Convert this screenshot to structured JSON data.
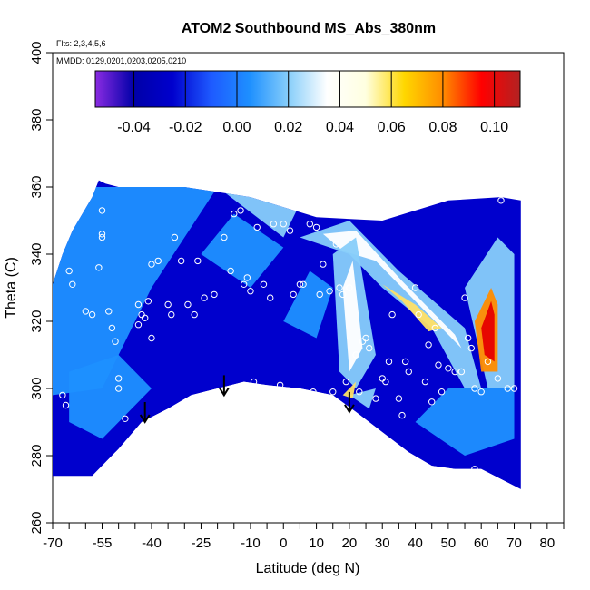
{
  "chart_data": {
    "type": "heatmap",
    "title": "ATOM2 Southbound MS_Abs_380nm",
    "subtitle_flights": "Flts: 2,3,4,5,6",
    "subtitle_dates": "MMDD: 0129,0201,0203,0205,0210",
    "xlabel": "Latitude (deg N)",
    "ylabel": "Theta (C)",
    "xlim": [
      -70,
      85
    ],
    "ylim": [
      260,
      400
    ],
    "x_ticks": [
      -70,
      -55,
      -40,
      -25,
      -10,
      0,
      10,
      20,
      30,
      40,
      50,
      60,
      70,
      80
    ],
    "x_minor_ticks": [
      -65,
      -60,
      -50,
      -45,
      -35,
      -30,
      -20,
      -15,
      -5,
      5,
      15,
      25,
      35,
      45,
      55,
      65,
      75,
      85
    ],
    "y_ticks": [
      260,
      280,
      300,
      320,
      340,
      360,
      380,
      400
    ],
    "colorbar": {
      "range": [
        -0.055,
        0.11
      ],
      "ticks": [
        -0.04,
        -0.02,
        0.0,
        0.02,
        0.04,
        0.06,
        0.08,
        0.1
      ],
      "tick_labels": [
        "-0.04",
        "-0.02",
        "0.00",
        "0.02",
        "0.04",
        "0.06",
        "0.08",
        "0.10"
      ],
      "colors": [
        "#8a2be2",
        "#0000a8",
        "#0000cd",
        "#1e5aff",
        "#1e90ff",
        "#87cefa",
        "#ffffff",
        "#ffffe0",
        "#ffd700",
        "#ff8c00",
        "#ff0000",
        "#b22222"
      ]
    },
    "field_colors": {
      "deep": "#0000cd",
      "mid": "#1e90ff",
      "light": "#87cefa",
      "pale": "#ffffff",
      "yellow": "#ffe066",
      "orange": "#ff8c00",
      "red": "#e60000"
    },
    "surface_profile": [
      {
        "lat": -58,
        "theta": 274
      },
      {
        "lat": -50,
        "theta": 282
      },
      {
        "lat": -43,
        "theta": 290
      },
      {
        "lat": -35,
        "theta": 294
      },
      {
        "lat": -28,
        "theta": 298
      },
      {
        "lat": -20,
        "theta": 300
      },
      {
        "lat": -12,
        "theta": 302
      },
      {
        "lat": -5,
        "theta": 301
      },
      {
        "lat": 5,
        "theta": 300
      },
      {
        "lat": 15,
        "theta": 298
      },
      {
        "lat": 22,
        "theta": 293
      },
      {
        "lat": 30,
        "theta": 287
      },
      {
        "lat": 38,
        "theta": 281
      },
      {
        "lat": 45,
        "theta": 277
      },
      {
        "lat": 52,
        "theta": 276
      },
      {
        "lat": 60,
        "theta": 276
      },
      {
        "lat": 72,
        "theta": 270
      }
    ],
    "arrows": [
      {
        "lat": -42,
        "theta": 290
      },
      {
        "lat": -18,
        "theta": 298
      },
      {
        "lat": 20,
        "theta": 293
      }
    ],
    "sample_points": [
      [
        -67,
        298
      ],
      [
        -66,
        295
      ],
      [
        -65,
        335
      ],
      [
        -64,
        331
      ],
      [
        -60,
        323
      ],
      [
        -58,
        322
      ],
      [
        -56,
        336
      ],
      [
        -55,
        353
      ],
      [
        -55,
        346
      ],
      [
        -55,
        345
      ],
      [
        -53,
        323
      ],
      [
        -52,
        318
      ],
      [
        -51,
        314
      ],
      [
        -50,
        300
      ],
      [
        -50,
        303
      ],
      [
        -48,
        291
      ],
      [
        -47,
        282
      ],
      [
        -45,
        286
      ],
      [
        -44,
        319
      ],
      [
        -44,
        325
      ],
      [
        -43,
        322
      ],
      [
        -42,
        321
      ],
      [
        -41,
        326
      ],
      [
        -40,
        315
      ],
      [
        -40,
        337
      ],
      [
        -38,
        338
      ],
      [
        -35,
        325
      ],
      [
        -34,
        322
      ],
      [
        -33,
        345
      ],
      [
        -31,
        338
      ],
      [
        -29,
        325
      ],
      [
        -27,
        322
      ],
      [
        -26,
        338
      ],
      [
        -24,
        327
      ],
      [
        -22,
        298
      ],
      [
        -21,
        328
      ],
      [
        -18,
        345
      ],
      [
        -16,
        335
      ],
      [
        -15,
        352
      ],
      [
        -13,
        353
      ],
      [
        -12,
        331
      ],
      [
        -11,
        333
      ],
      [
        -10,
        329
      ],
      [
        -9,
        302
      ],
      [
        -8,
        348
      ],
      [
        -6,
        331
      ],
      [
        -4,
        327
      ],
      [
        -3,
        349
      ],
      [
        -1,
        301
      ],
      [
        0,
        349
      ],
      [
        2,
        347
      ],
      [
        3,
        328
      ],
      [
        5,
        331
      ],
      [
        6,
        331
      ],
      [
        8,
        349
      ],
      [
        9,
        299
      ],
      [
        10,
        348
      ],
      [
        11,
        328
      ],
      [
        12,
        337
      ],
      [
        14,
        329
      ],
      [
        15,
        299
      ],
      [
        16,
        343
      ],
      [
        17,
        330
      ],
      [
        18,
        328
      ],
      [
        19,
        302
      ],
      [
        20,
        330
      ],
      [
        21,
        291
      ],
      [
        22,
        310
      ],
      [
        23,
        299
      ],
      [
        24,
        314
      ],
      [
        25,
        315
      ],
      [
        26,
        312
      ],
      [
        28,
        297
      ],
      [
        30,
        303
      ],
      [
        31,
        302
      ],
      [
        32,
        308
      ],
      [
        33,
        322
      ],
      [
        35,
        297
      ],
      [
        36,
        292
      ],
      [
        37,
        308
      ],
      [
        38,
        305
      ],
      [
        40,
        330
      ],
      [
        41,
        322
      ],
      [
        43,
        302
      ],
      [
        44,
        313
      ],
      [
        45,
        296
      ],
      [
        46,
        318
      ],
      [
        47,
        307
      ],
      [
        48,
        299
      ],
      [
        50,
        306
      ],
      [
        52,
        305
      ],
      [
        54,
        305
      ],
      [
        55,
        327
      ],
      [
        56,
        315
      ],
      [
        57,
        312
      ],
      [
        58,
        300
      ],
      [
        58,
        276
      ],
      [
        60,
        299
      ],
      [
        62,
        308
      ],
      [
        65,
        303
      ],
      [
        66,
        356
      ],
      [
        68,
        300
      ],
      [
        70,
        300
      ]
    ]
  }
}
